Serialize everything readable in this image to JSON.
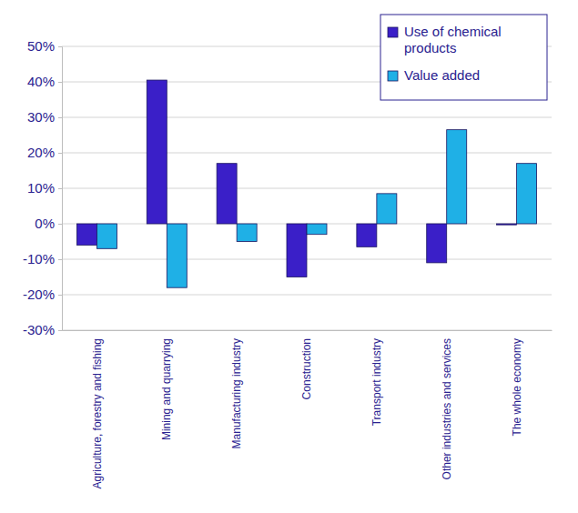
{
  "chart_data": {
    "type": "bar",
    "categories": [
      "Agriculture, forestry and fishing",
      "Mining and quarrying",
      "Manufacturing industry",
      "Construction",
      "Transport industry",
      "Other industries and services",
      "The whole economy"
    ],
    "series": [
      {
        "name": "Use of chemical products",
        "color": "#3a1fc8",
        "values": [
          -6,
          40.5,
          17,
          -15,
          -6.5,
          -11,
          -0.3
        ]
      },
      {
        "name": "Value added",
        "color": "#1fb0e6",
        "values": [
          -7,
          -18,
          -5,
          -3,
          8.5,
          26.5,
          17
        ]
      }
    ],
    "ylim": [
      -30,
      50
    ],
    "yticks": [
      {
        "value": -30,
        "label": "-30%"
      },
      {
        "value": -20,
        "label": "-20%"
      },
      {
        "value": -10,
        "label": "-10%"
      },
      {
        "value": 0,
        "label": "0%"
      },
      {
        "value": 10,
        "label": "10%"
      },
      {
        "value": 20,
        "label": "20%"
      },
      {
        "value": 30,
        "label": "30%"
      },
      {
        "value": 40,
        "label": "40%"
      },
      {
        "value": 50,
        "label": "50%"
      }
    ],
    "grid": true,
    "legend": "top-right"
  }
}
